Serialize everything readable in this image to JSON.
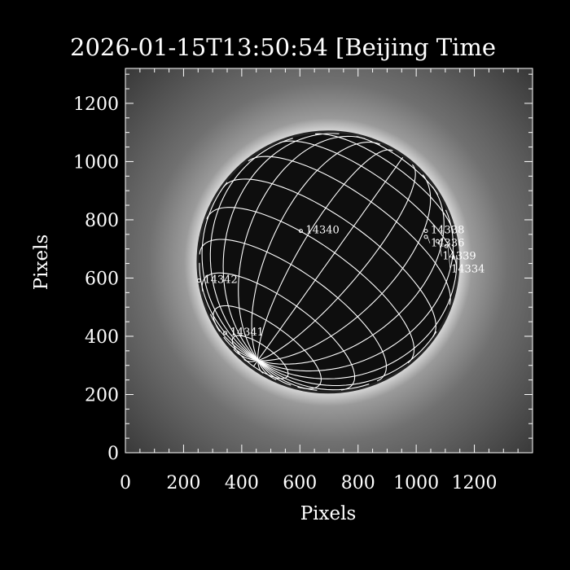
{
  "chart_data": {
    "type": "image",
    "title": "2026-01-15T13:50:54 [Beijing Time",
    "xlabel": "Pixels",
    "ylabel": "Pixels",
    "xlim": [
      0,
      1400
    ],
    "ylim": [
      0,
      1320
    ],
    "xticks": [
      "0",
      "200",
      "400",
      "600",
      "800",
      "1000",
      "1200"
    ],
    "yticks": [
      "0",
      "200",
      "400",
      "600",
      "800",
      "1000",
      "1200"
    ],
    "xtick_values": [
      0,
      200,
      400,
      600,
      800,
      1000,
      1200
    ],
    "ytick_values": [
      0,
      200,
      400,
      600,
      800,
      1000,
      1200
    ],
    "sun": {
      "center": [
        697,
        655
      ],
      "radius": 447
    },
    "grid": "heliographic lat/lon, 15 degree spacing",
    "regions": [
      {
        "label": "14340",
        "x": 620,
        "y": 770
      },
      {
        "label": "14342",
        "x": 270,
        "y": 600
      },
      {
        "label": "14341",
        "x": 360,
        "y": 420
      },
      {
        "label": "14338",
        "x": 1050,
        "y": 770
      },
      {
        "label": "14336",
        "x": 1050,
        "y": 750
      },
      {
        "label": "14339",
        "x": 1090,
        "y": 735
      },
      {
        "label": "14334",
        "x": 1120,
        "y": 718
      }
    ],
    "colors": {
      "background": "#000000",
      "grid": "#ffffff",
      "text": "#ffffff"
    }
  }
}
